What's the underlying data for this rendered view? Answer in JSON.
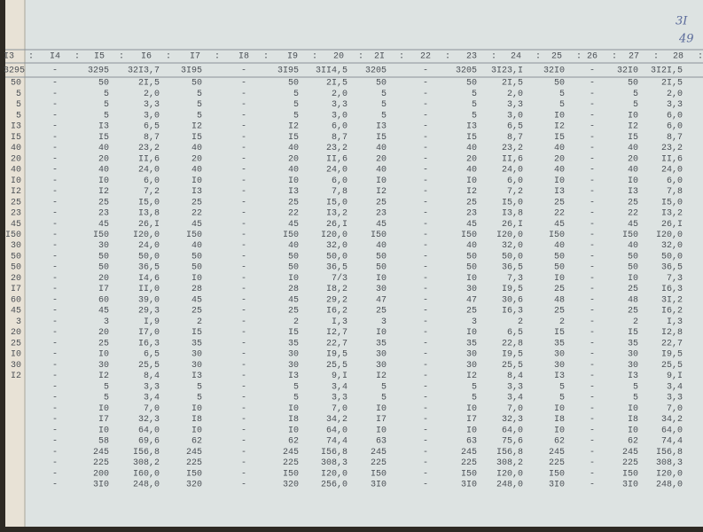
{
  "note": [
    "3I",
    "49"
  ],
  "header": {
    "columns": [
      "I3",
      "I4",
      "I5",
      "I6",
      "I7",
      "I8",
      "I9",
      "20",
      "2I",
      "22",
      "23",
      "24",
      "25",
      "26",
      "27",
      "28"
    ],
    "separator": ":"
  },
  "totals": [
    "3295",
    "-",
    "3295",
    "32I3,7",
    "3I95",
    "-",
    "3I95",
    "3II4,5",
    "3205",
    "-",
    "3205",
    "3I23,I",
    "32I0",
    "-",
    "32I0",
    "3I2I,5"
  ],
  "edge_column": [
    "50",
    "5",
    "5",
    "5",
    "I3",
    "I5",
    "40",
    "20",
    "40",
    "I0",
    "I2",
    "25",
    "23",
    "45",
    "I50",
    "30",
    "50",
    "50",
    "20",
    "I7",
    "60",
    "45",
    "3",
    "20",
    "25",
    "I0",
    "30",
    "I2"
  ],
  "rows": [
    [
      "-",
      "50",
      "2I,5",
      "50",
      "-",
      "50",
      "2I,5",
      "50",
      "-",
      "50",
      "2I,5",
      "50",
      "-",
      "50",
      "2I,5"
    ],
    [
      "-",
      "5",
      "2,0",
      "5",
      "-",
      "5",
      "2,0",
      "5",
      "-",
      "5",
      "2,0",
      "5",
      "-",
      "5",
      "2,0"
    ],
    [
      "-",
      "5",
      "3,3",
      "5",
      "-",
      "5",
      "3,3",
      "5",
      "-",
      "5",
      "3,3",
      "5",
      "-",
      "5",
      "3,3"
    ],
    [
      "-",
      "5",
      "3,0",
      "5",
      "-",
      "5",
      "3,0",
      "5",
      "-",
      "5",
      "3,0",
      "I0",
      "-",
      "I0",
      "6,0"
    ],
    [
      "-",
      "I3",
      "6,5",
      "I2",
      "-",
      "I2",
      "6,0",
      "I3",
      "-",
      "I3",
      "6,5",
      "I2",
      "-",
      "I2",
      "6,0"
    ],
    [
      "-",
      "I5",
      "8,7",
      "I5",
      "-",
      "I5",
      "8,7",
      "I5",
      "-",
      "I5",
      "8,7",
      "I5",
      "-",
      "I5",
      "8,7"
    ],
    [
      "-",
      "40",
      "23,2",
      "40",
      "-",
      "40",
      "23,2",
      "40",
      "-",
      "40",
      "23,2",
      "40",
      "-",
      "40",
      "23,2"
    ],
    [
      "-",
      "20",
      "II,6",
      "20",
      "-",
      "20",
      "II,6",
      "20",
      "-",
      "20",
      "II,6",
      "20",
      "-",
      "20",
      "II,6"
    ],
    [
      "-",
      "40",
      "24,0",
      "40",
      "-",
      "40",
      "24,0",
      "40",
      "-",
      "40",
      "24,0",
      "40",
      "-",
      "40",
      "24,0"
    ],
    [
      "-",
      "I0",
      "6,0",
      "I0",
      "-",
      "I0",
      "6,0",
      "I0",
      "-",
      "I0",
      "6,0",
      "I0",
      "-",
      "I0",
      "6,0"
    ],
    [
      "-",
      "I2",
      "7,2",
      "I3",
      "-",
      "I3",
      "7,8",
      "I2",
      "-",
      "I2",
      "7,2",
      "I3",
      "-",
      "I3",
      "7,8"
    ],
    [
      "-",
      "25",
      "I5,0",
      "25",
      "-",
      "25",
      "I5,0",
      "25",
      "-",
      "25",
      "I5,0",
      "25",
      "-",
      "25",
      "I5,0"
    ],
    [
      "-",
      "23",
      "I3,8",
      "22",
      "-",
      "22",
      "I3,2",
      "23",
      "-",
      "23",
      "I3,8",
      "22",
      "-",
      "22",
      "I3,2"
    ],
    [
      "-",
      "45",
      "26,I",
      "45",
      "-",
      "45",
      "26,I",
      "45",
      "-",
      "45",
      "26,I",
      "45",
      "-",
      "45",
      "26,I"
    ],
    [
      "-",
      "I50",
      "I20,0",
      "I50",
      "-",
      "I50",
      "I20,0",
      "I50",
      "-",
      "I50",
      "I20,0",
      "I50",
      "-",
      "I50",
      "I20,0"
    ],
    [
      "-",
      "30",
      "24,0",
      "40",
      "-",
      "40",
      "32,0",
      "40",
      "-",
      "40",
      "32,0",
      "40",
      "-",
      "40",
      "32,0"
    ],
    [
      "-",
      "50",
      "50,0",
      "50",
      "-",
      "50",
      "50,0",
      "50",
      "-",
      "50",
      "50,0",
      "50",
      "-",
      "50",
      "50,0"
    ],
    [
      "-",
      "50",
      "36,5",
      "50",
      "-",
      "50",
      "36,5",
      "50",
      "-",
      "50",
      "36,5",
      "50",
      "-",
      "50",
      "36,5"
    ],
    [
      "-",
      "20",
      "I4,6",
      "I0",
      "-",
      "I0",
      "7/3",
      "I0",
      "-",
      "I0",
      "7,3",
      "I0",
      "-",
      "I0",
      "7,3"
    ],
    [
      "-",
      "I7",
      "II,0",
      "28",
      "-",
      "28",
      "I8,2",
      "30",
      "-",
      "30",
      "I9,5",
      "25",
      "-",
      "25",
      "I6,3"
    ],
    [
      "-",
      "60",
      "39,0",
      "45",
      "-",
      "45",
      "29,2",
      "47",
      "-",
      "47",
      "30,6",
      "48",
      "-",
      "48",
      "3I,2"
    ],
    [
      "-",
      "45",
      "29,3",
      "25",
      "-",
      "25",
      "I6,2",
      "25",
      "-",
      "25",
      "I6,3",
      "25",
      "-",
      "25",
      "I6,2"
    ],
    [
      "-",
      "3",
      "I,9",
      "2",
      "-",
      "2",
      "I,3",
      "3",
      "-",
      "3",
      "2",
      "2",
      "-",
      "2",
      "I,3"
    ],
    [
      "-",
      "20",
      "I7,0",
      "I5",
      "-",
      "I5",
      "I2,7",
      "I0",
      "-",
      "I0",
      "6,5",
      "I5",
      "-",
      "I5",
      "I2,8"
    ],
    [
      "-",
      "25",
      "I6,3",
      "35",
      "-",
      "35",
      "22,7",
      "35",
      "-",
      "35",
      "22,8",
      "35",
      "-",
      "35",
      "22,7"
    ],
    [
      "-",
      "I0",
      "6,5",
      "30",
      "-",
      "30",
      "I9,5",
      "30",
      "-",
      "30",
      "I9,5",
      "30",
      "-",
      "30",
      "I9,5"
    ],
    [
      "-",
      "30",
      "25,5",
      "30",
      "-",
      "30",
      "25,5",
      "30",
      "-",
      "30",
      "25,5",
      "30",
      "-",
      "30",
      "25,5"
    ],
    [
      "-",
      "I2",
      "8,4",
      "I3",
      "-",
      "I3",
      "9,I",
      "I2",
      "-",
      "I2",
      "8,4",
      "I3",
      "-",
      "I3",
      "9,I"
    ],
    [
      "-",
      "5",
      "3,3",
      "5",
      "-",
      "5",
      "3,4",
      "5",
      "-",
      "5",
      "3,3",
      "5",
      "-",
      "5",
      "3,4"
    ],
    [
      "-",
      "5",
      "3,4",
      "5",
      "-",
      "5",
      "3,3",
      "5",
      "-",
      "5",
      "3,4",
      "5",
      "-",
      "5",
      "3,3"
    ],
    [
      "-",
      "I0",
      "7,0",
      "I0",
      "-",
      "I0",
      "7,0",
      "I0",
      "-",
      "I0",
      "7,0",
      "I0",
      "-",
      "I0",
      "7,0"
    ],
    [
      "-",
      "I7",
      "32,3",
      "I8",
      "-",
      "I8",
      "34,2",
      "I7",
      "-",
      "I7",
      "32,3",
      "I8",
      "-",
      "I8",
      "34,2"
    ],
    [
      "-",
      "I0",
      "64,0",
      "I0",
      "-",
      "I0",
      "64,0",
      "I0",
      "-",
      "I0",
      "64,0",
      "I0",
      "-",
      "I0",
      "64,0"
    ],
    [
      "-",
      "58",
      "69,6",
      "62",
      "-",
      "62",
      "74,4",
      "63",
      "-",
      "63",
      "75,6",
      "62",
      "-",
      "62",
      "74,4"
    ],
    [
      "-",
      "245",
      "I56,8",
      "245",
      "-",
      "245",
      "I56,8",
      "245",
      "-",
      "245",
      "I56,8",
      "245",
      "-",
      "245",
      "I56,8"
    ],
    [
      "-",
      "225",
      "308,2",
      "225",
      "-",
      "225",
      "308,3",
      "225",
      "-",
      "225",
      "308,2",
      "225",
      "-",
      "225",
      "308,3"
    ],
    [
      "-",
      "200",
      "I60,0",
      "I50",
      "-",
      "I50",
      "I20,0",
      "I50",
      "-",
      "I50",
      "I20,0",
      "I50",
      "-",
      "I50",
      "I20,0"
    ],
    [
      "-",
      "3I0",
      "248,0",
      "320",
      "-",
      "320",
      "256,0",
      "3I0",
      "-",
      "3I0",
      "248,0",
      "3I0",
      "-",
      "3I0",
      "248,0"
    ]
  ]
}
